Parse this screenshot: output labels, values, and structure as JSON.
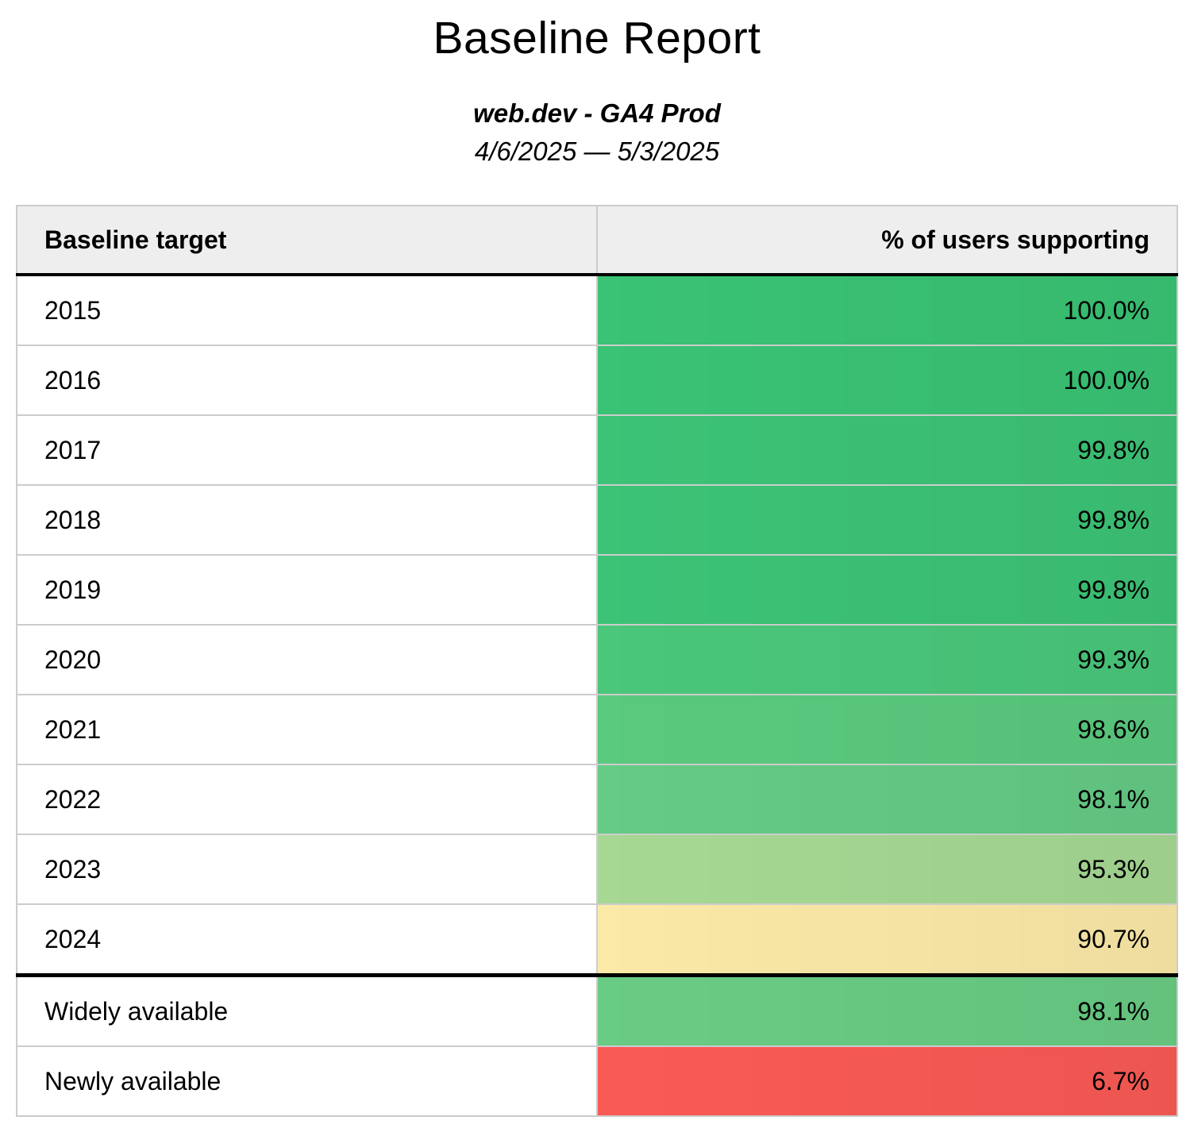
{
  "report": {
    "title": "Baseline Report",
    "subtitle": "web.dev - GA4 Prod",
    "date_range": "4/6/2025 — 5/3/2025"
  },
  "table": {
    "columns": [
      "Baseline target",
      "% of users supporting"
    ],
    "rows": [
      {
        "target": "2015",
        "value": "100.0%",
        "color": "#3ac374"
      },
      {
        "target": "2016",
        "value": "100.0%",
        "color": "#3ac374"
      },
      {
        "target": "2017",
        "value": "99.8%",
        "color": "#3cc376"
      },
      {
        "target": "2018",
        "value": "99.8%",
        "color": "#3cc376"
      },
      {
        "target": "2019",
        "value": "99.8%",
        "color": "#3cc376"
      },
      {
        "target": "2020",
        "value": "99.3%",
        "color": "#4ac77b"
      },
      {
        "target": "2021",
        "value": "98.6%",
        "color": "#5aca7e"
      },
      {
        "target": "2022",
        "value": "98.1%",
        "color": "#65cb85"
      },
      {
        "target": "2023",
        "value": "95.3%",
        "color": "#a6d893"
      },
      {
        "target": "2024",
        "value": "90.7%",
        "color": "#fbe9a7",
        "section_break_after": true
      },
      {
        "target": "Widely available",
        "value": "98.1%",
        "color": "#69cc84"
      },
      {
        "target": "Newly available",
        "value": "6.7%",
        "color": "#fa5a55"
      }
    ],
    "style": {
      "header_background": "#eeeeee",
      "grid_border_color": "#cccccc",
      "section_border_color": "#000000"
    }
  },
  "chart_data": {
    "type": "table",
    "title": "Baseline Report",
    "subtitle": "web.dev - GA4 Prod",
    "date_range": "4/6/2025 — 5/3/2025",
    "columns": [
      "Baseline target",
      "% of users supporting"
    ],
    "rows": [
      [
        "2015",
        100.0
      ],
      [
        "2016",
        100.0
      ],
      [
        "2017",
        99.8
      ],
      [
        "2018",
        99.8
      ],
      [
        "2019",
        99.8
      ],
      [
        "2020",
        99.3
      ],
      [
        "2021",
        98.6
      ],
      [
        "2022",
        98.1
      ],
      [
        "2023",
        95.3
      ],
      [
        "2024",
        90.7
      ],
      [
        "Widely available",
        98.1
      ],
      [
        "Newly available",
        6.7
      ]
    ],
    "value_format": "percent",
    "layout_hints": {
      "value_column_alignment": "right",
      "color_scale": "green-yellow-red heatmap applied to % of users supporting column",
      "thick_divider_after_row": "2024"
    }
  }
}
